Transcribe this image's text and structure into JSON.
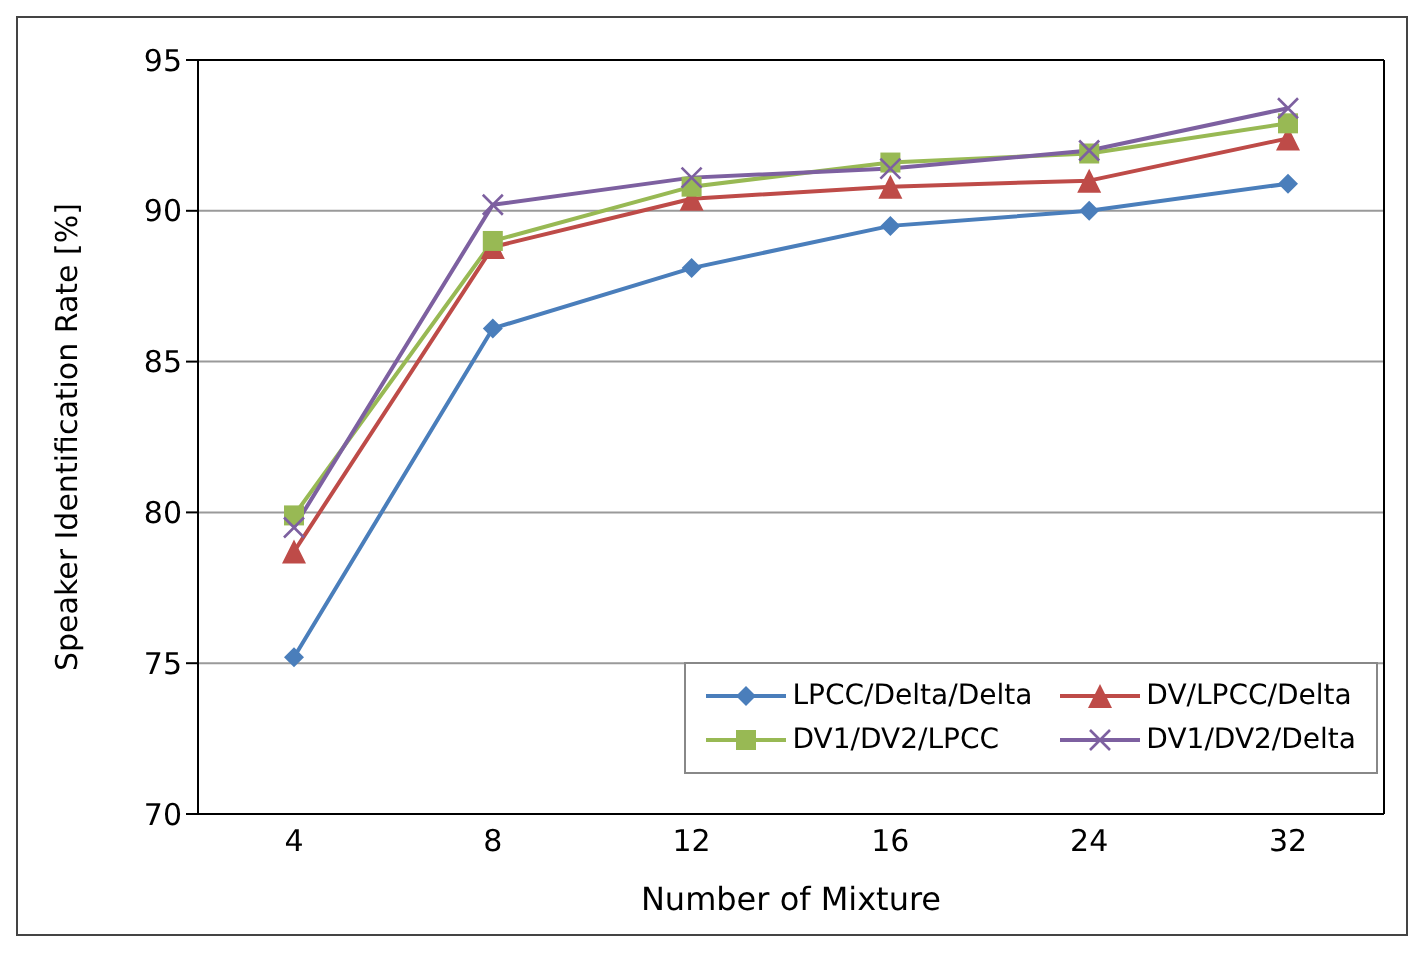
{
  "chart_data": {
    "type": "line",
    "xlabel": "Number  of  Mixture",
    "ylabel": "Speaker Identification Rate [%]",
    "categories": [
      "4",
      "8",
      "12",
      "16",
      "24",
      "32"
    ],
    "series": [
      {
        "name": "LPCC/Delta/Delta",
        "color": "#4a7ebb",
        "marker": "diamond",
        "values": [
          75.2,
          86.1,
          88.1,
          89.5,
          90.0,
          90.9
        ]
      },
      {
        "name": "DV/LPCC/Delta",
        "color": "#be4b48",
        "marker": "triangle",
        "values": [
          78.7,
          88.8,
          90.4,
          90.8,
          91.0,
          92.4
        ]
      },
      {
        "name": "DV1/DV2/LPCC",
        "color": "#98b954",
        "marker": "square",
        "values": [
          79.9,
          89.0,
          90.8,
          91.6,
          91.9,
          92.9
        ]
      },
      {
        "name": "DV1/DV2/Delta",
        "color": "#7d60a0",
        "marker": "cross",
        "values": [
          79.5,
          90.2,
          91.1,
          91.4,
          92.0,
          93.4
        ]
      }
    ],
    "ylim": [
      70,
      95
    ],
    "yticks": [
      70,
      75,
      80,
      85,
      90,
      95
    ],
    "grid": "y",
    "legend": "bottom right",
    "line_style": "solid"
  }
}
